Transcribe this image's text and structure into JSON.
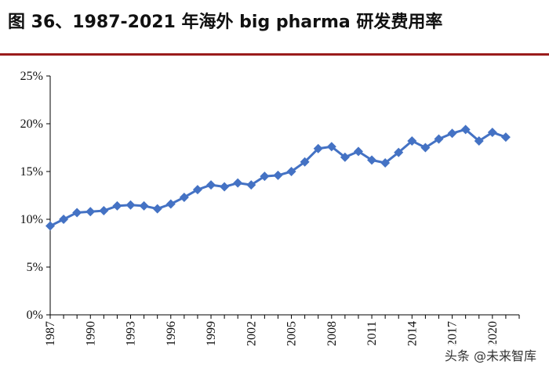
{
  "header": {
    "title": "图 36、1987-2021 年海外 big pharma 研发费用率"
  },
  "watermark": {
    "text": "头条 @未来智库"
  },
  "colors": {
    "series": "#4472C4",
    "axis": "#000000",
    "title_rule": "#9a1c1c"
  },
  "chart_data": {
    "type": "line",
    "title": "图 36、1987-2021 年海外 big pharma 研发费用率",
    "xlabel": "",
    "ylabel": "",
    "ylim": [
      0,
      25
    ],
    "ytick_values": [
      0,
      5,
      10,
      15,
      20,
      25
    ],
    "ytick_labels": [
      "0%",
      "5%",
      "10%",
      "15%",
      "20%",
      "25%"
    ],
    "xtick_values": [
      1987,
      1990,
      1993,
      1996,
      1999,
      2002,
      2005,
      2008,
      2011,
      2014,
      2017,
      2020
    ],
    "xtick_labels": [
      "1987",
      "1990",
      "1993",
      "1996",
      "1999",
      "2002",
      "2005",
      "2008",
      "2011",
      "2014",
      "2017",
      "2020"
    ],
    "grid": false,
    "legend": "none",
    "marker": "diamond",
    "x": [
      1987,
      1988,
      1989,
      1990,
      1991,
      1992,
      1993,
      1994,
      1995,
      1996,
      1997,
      1998,
      1999,
      2000,
      2001,
      2002,
      2003,
      2004,
      2005,
      2006,
      2007,
      2008,
      2009,
      2010,
      2011,
      2012,
      2013,
      2014,
      2015,
      2016,
      2017,
      2018,
      2019,
      2020,
      2021
    ],
    "series": [
      {
        "values": [
          9.3,
          10.0,
          10.7,
          10.8,
          10.9,
          11.4,
          11.5,
          11.4,
          11.1,
          11.6,
          12.3,
          13.1,
          13.6,
          13.4,
          13.8,
          13.6,
          14.5,
          14.6,
          15.0,
          16.0,
          17.4,
          17.6,
          16.5,
          17.1,
          16.2,
          15.9,
          17.0,
          18.2,
          17.5,
          18.4,
          19.0,
          19.4,
          18.2,
          19.1,
          18.6
        ]
      }
    ]
  }
}
